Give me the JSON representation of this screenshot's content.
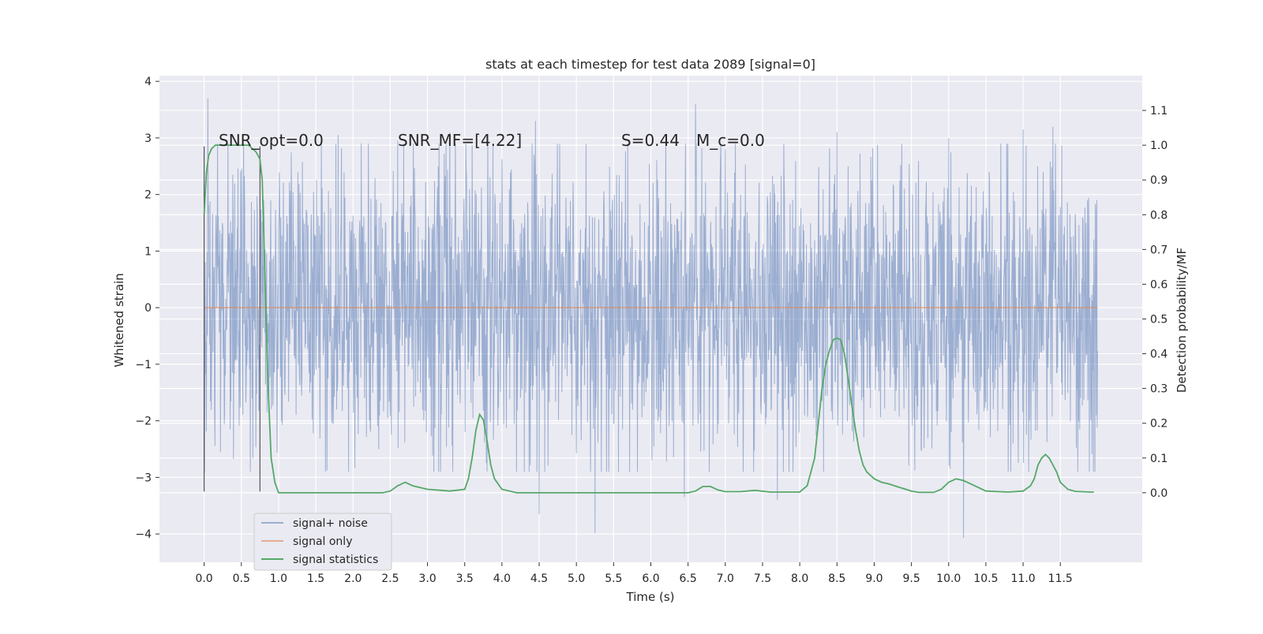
{
  "chart_data": {
    "type": "line",
    "title": "stats at each timestep for test data 2089 [signal=0]",
    "xlabel": "Time (s)",
    "ylabel": "Whitened strain",
    "y2label": "Detection probability/MF",
    "xlim": [
      -0.6,
      12.6
    ],
    "ylim": [
      -4.5,
      4.1
    ],
    "y2lim": [
      -0.2,
      1.2
    ],
    "x_ticks": [
      0.0,
      0.5,
      1.0,
      1.5,
      2.0,
      2.5,
      3.0,
      3.5,
      4.0,
      4.5,
      5.0,
      5.5,
      6.0,
      6.5,
      7.0,
      7.5,
      8.0,
      8.5,
      9.0,
      9.5,
      10.0,
      10.5,
      11.0,
      11.5
    ],
    "x_tick_labels": [
      "0.0",
      "0.5",
      "1.0",
      "1.5",
      "2.0",
      "2.5",
      "3.0",
      "3.5",
      "4.0",
      "4.5",
      "5.0",
      "5.5",
      "6.0",
      "6.5",
      "7.0",
      "7.5",
      "8.0",
      "8.5",
      "9.0",
      "9.5",
      "10.0",
      "10.5",
      "11.0",
      "11.5"
    ],
    "y_ticks": [
      4,
      3,
      2,
      1,
      0,
      -1,
      -2,
      -3,
      -4
    ],
    "y_tick_labels": [
      "4",
      "3",
      "2",
      "1",
      "0",
      "−1",
      "−2",
      "−3",
      "−4"
    ],
    "y2_ticks": [
      1.1,
      1.0,
      0.9,
      0.8,
      0.7,
      0.6,
      0.5,
      0.4,
      0.3,
      0.2,
      0.1,
      0.0
    ],
    "y2_tick_labels": [
      "1.1",
      "1.0",
      "0.9",
      "0.8",
      "0.7",
      "0.6",
      "0.5",
      "0.4",
      "0.3",
      "0.2",
      "0.1",
      "0.0"
    ],
    "grid": true,
    "legend_position": "bottom-left",
    "series": [
      {
        "name": "signal+ noise",
        "color": "#4c72b0",
        "axis": "left",
        "x_range": [
          0.0,
          12.0
        ],
        "typical_amplitude": 1.3,
        "peaks": [
          [
            0.05,
            3.7
          ],
          [
            1.8,
            3.05
          ],
          [
            2.6,
            2.95
          ],
          [
            3.3,
            3.1
          ],
          [
            4.45,
            3.3
          ],
          [
            6.6,
            3.6
          ],
          [
            8.5,
            3.1
          ],
          [
            10.0,
            3.0
          ],
          [
            11.0,
            3.15
          ],
          [
            11.4,
            3.2
          ]
        ],
        "troughs": [
          [
            4.5,
            -3.65
          ],
          [
            5.25,
            -3.98
          ],
          [
            6.45,
            -3.35
          ],
          [
            7.7,
            -3.4
          ],
          [
            10.2,
            -4.07
          ]
        ]
      },
      {
        "name": "signal only",
        "color": "#dd8452",
        "axis": "left",
        "x": [
          0.0,
          12.0
        ],
        "y": [
          0.0,
          0.0
        ]
      },
      {
        "name": "signal statistics",
        "color": "#55a868",
        "axis": "right",
        "x": [
          0.0,
          0.03,
          0.06,
          0.1,
          0.15,
          0.2,
          0.3,
          0.4,
          0.5,
          0.6,
          0.65,
          0.7,
          0.75,
          0.78,
          0.82,
          0.86,
          0.9,
          0.95,
          1.0,
          1.1,
          1.5,
          2.0,
          2.4,
          2.5,
          2.6,
          2.7,
          2.8,
          3.0,
          3.3,
          3.5,
          3.55,
          3.6,
          3.65,
          3.7,
          3.75,
          3.8,
          3.85,
          3.9,
          4.0,
          4.2,
          5.0,
          6.0,
          6.5,
          6.6,
          6.7,
          6.8,
          6.9,
          7.0,
          7.2,
          7.4,
          7.6,
          8.0,
          8.1,
          8.2,
          8.3,
          8.35,
          8.4,
          8.45,
          8.5,
          8.55,
          8.6,
          8.65,
          8.7,
          8.75,
          8.8,
          8.85,
          8.9,
          9.0,
          9.1,
          9.2,
          9.3,
          9.5,
          9.6,
          9.8,
          9.9,
          10.0,
          10.1,
          10.2,
          10.3,
          10.5,
          10.8,
          11.0,
          11.1,
          11.15,
          11.2,
          11.25,
          11.3,
          11.35,
          11.4,
          11.45,
          11.5,
          11.6,
          11.7,
          11.9,
          11.95
        ],
        "y": [
          0.8,
          0.92,
          0.97,
          0.99,
          1.0,
          1.0,
          1.0,
          1.0,
          1.0,
          1.0,
          0.99,
          0.98,
          0.96,
          0.9,
          0.6,
          0.3,
          0.1,
          0.03,
          0.0,
          0.0,
          0.0,
          0.0,
          0.0,
          0.005,
          0.02,
          0.03,
          0.02,
          0.01,
          0.005,
          0.01,
          0.04,
          0.1,
          0.18,
          0.225,
          0.21,
          0.15,
          0.08,
          0.04,
          0.01,
          0.0,
          0.0,
          0.0,
          0.0,
          0.005,
          0.018,
          0.018,
          0.008,
          0.003,
          0.003,
          0.007,
          0.002,
          0.002,
          0.02,
          0.1,
          0.3,
          0.37,
          0.41,
          0.44,
          0.445,
          0.44,
          0.4,
          0.33,
          0.25,
          0.18,
          0.12,
          0.08,
          0.06,
          0.04,
          0.03,
          0.025,
          0.018,
          0.005,
          0.001,
          0.001,
          0.01,
          0.03,
          0.04,
          0.035,
          0.025,
          0.005,
          0.002,
          0.005,
          0.02,
          0.04,
          0.08,
          0.1,
          0.11,
          0.1,
          0.08,
          0.06,
          0.03,
          0.01,
          0.004,
          0.002,
          0.002
        ]
      }
    ],
    "vertical_lines": [
      {
        "x": 0.0,
        "y_range": [
          -3.25,
          2.85
        ],
        "color": "#555555"
      },
      {
        "x": 0.75,
        "y_range": [
          -3.25,
          2.85
        ],
        "color": "#555555"
      }
    ],
    "annotations": [
      {
        "text": "SNR_opt=0.0",
        "x": 0.2,
        "y": 3.0
      },
      {
        "text": "SNR_MF=[4.22]",
        "x": 2.6,
        "y": 3.0
      },
      {
        "text": "S=0.44",
        "x": 5.6,
        "y": 3.0
      },
      {
        "text": "M_c=0.0",
        "x": 6.6,
        "y": 3.0
      }
    ]
  }
}
